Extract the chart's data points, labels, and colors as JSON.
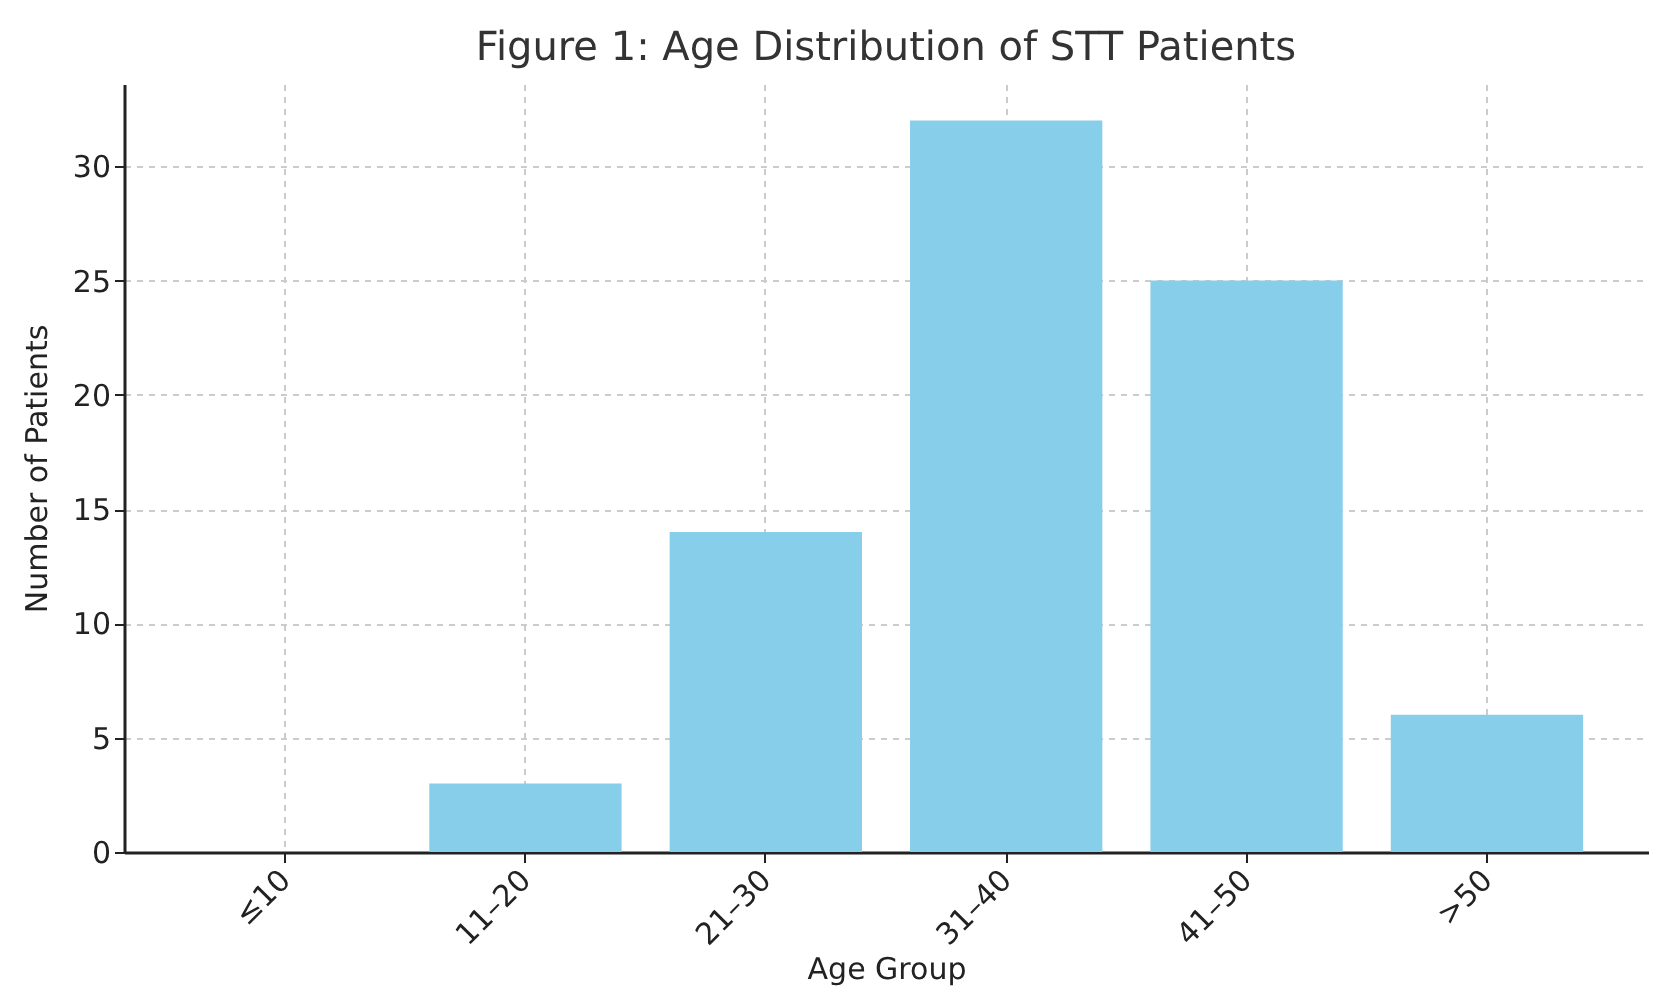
{
  "chart_data": {
    "type": "bar",
    "title": "Figure 1: Age Distribution of STT Patients",
    "xlabel": "Age Group",
    "ylabel": "Number of Patients",
    "categories": [
      "≤10",
      "11–20",
      "21–30",
      "31–40",
      "41–50",
      ">50"
    ],
    "values": [
      0,
      3,
      14,
      32,
      25,
      6
    ],
    "color": "#87ceeb",
    "ylim": [
      0,
      33.6
    ],
    "yticks": [
      0,
      5,
      10,
      15,
      20,
      25,
      30
    ],
    "grid": true
  }
}
